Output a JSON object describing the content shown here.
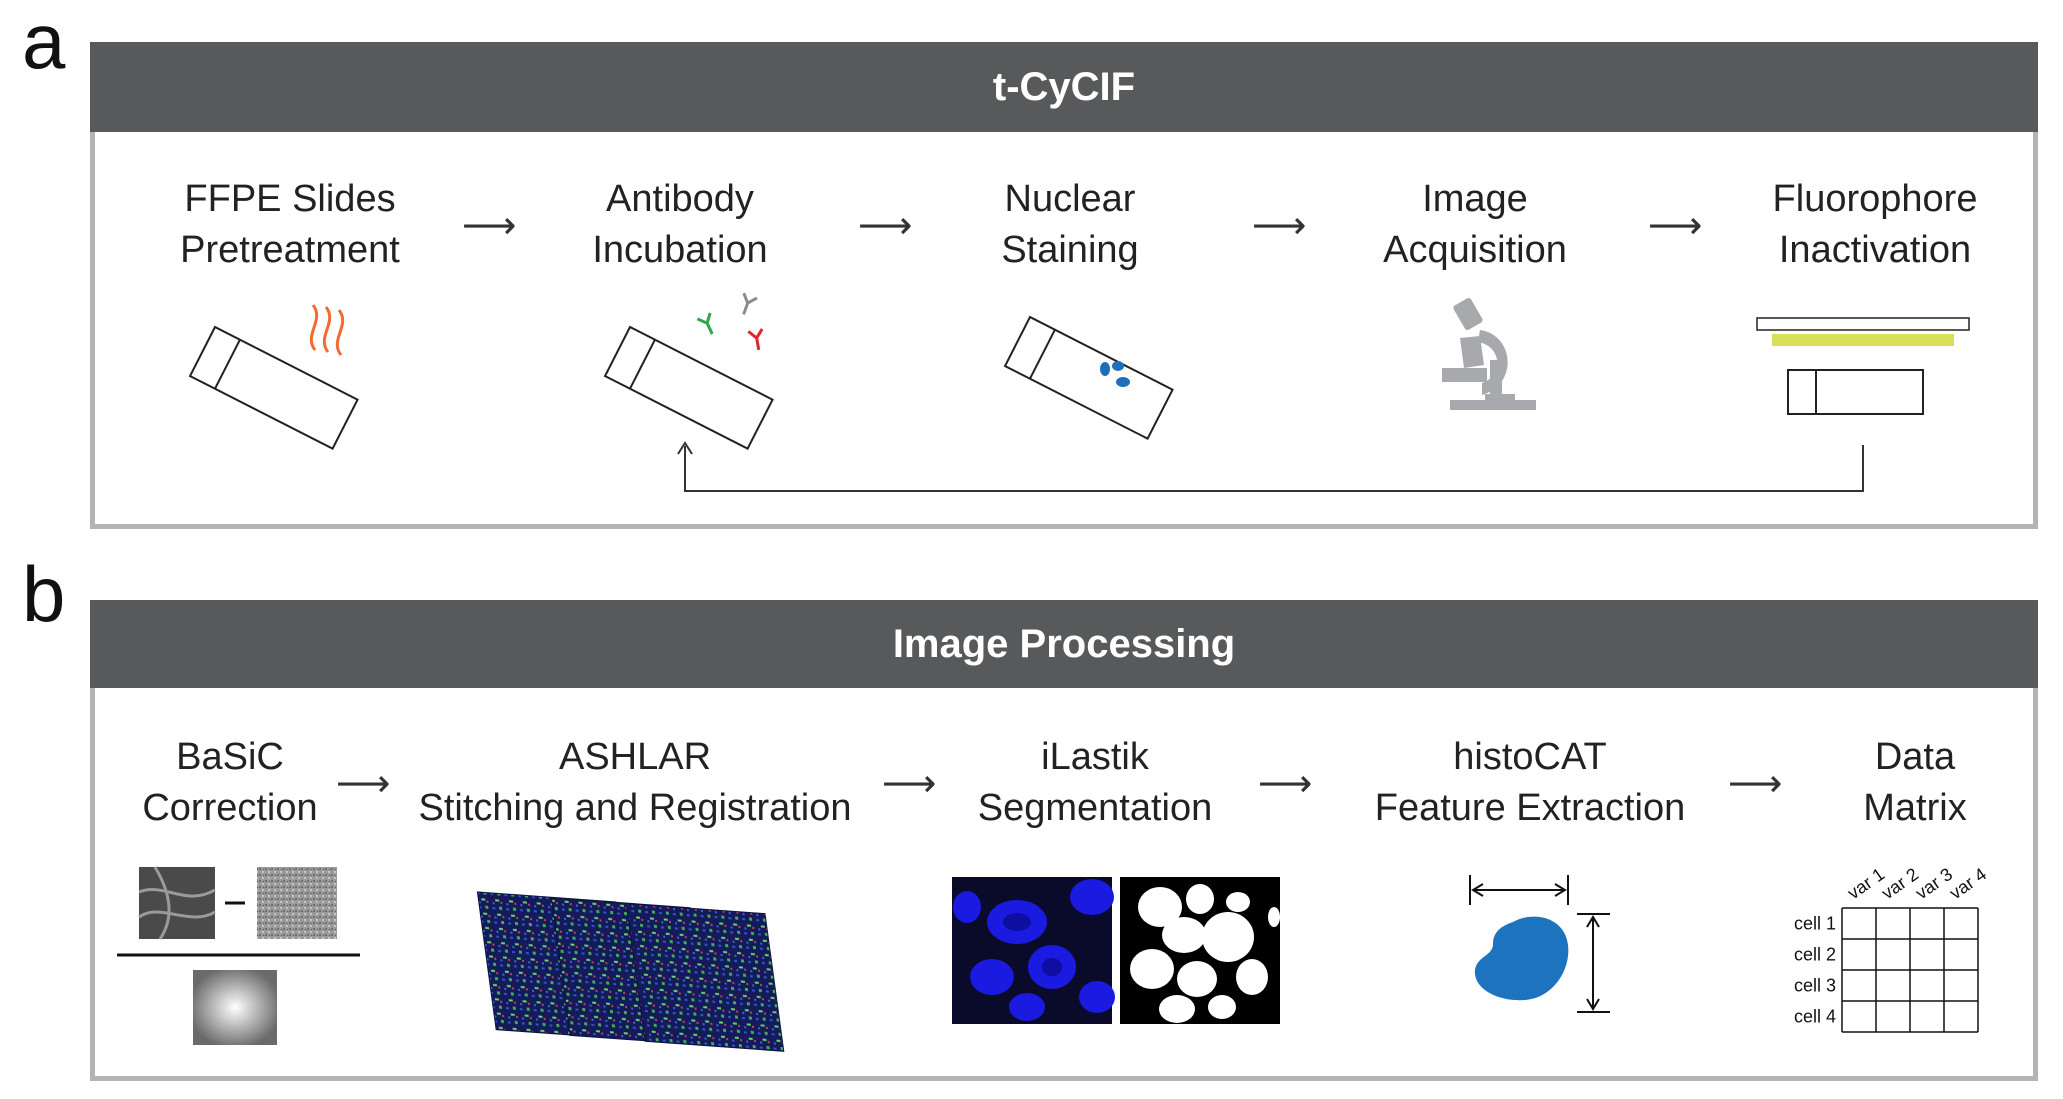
{
  "panel_a": {
    "letter": "a",
    "header": "t-CyCIF",
    "steps": [
      {
        "line1": "FFPE Slides",
        "line2": "Pretreatment"
      },
      {
        "line1": "Antibody",
        "line2": "Incubation"
      },
      {
        "line1": "Nuclear",
        "line2": "Staining"
      },
      {
        "line1": "Image",
        "line2": "Acquisition"
      },
      {
        "line1": "Fluorophore",
        "line2": "Inactivation"
      }
    ],
    "arrow": "⟶"
  },
  "panel_b": {
    "letter": "b",
    "header": "Image Processing",
    "steps": [
      {
        "line1": "BaSiC",
        "line2": "Correction"
      },
      {
        "line1": "ASHLAR",
        "line2": "Stitching and Registration"
      },
      {
        "line1": "iLastik",
        "line2": "Segmentation"
      },
      {
        "line1": "histoCAT",
        "line2": "Feature Extraction"
      },
      {
        "line1": "Data",
        "line2": "Matrix"
      }
    ],
    "arrow": "⟶",
    "matrix": {
      "columns": [
        "var 1",
        "var 2",
        "var 3",
        "var 4"
      ],
      "rows": [
        "cell 1",
        "cell 2",
        "cell 3",
        "cell 4"
      ]
    }
  },
  "colors": {
    "header_bg": "#58595b",
    "frame": "#b4b4b6",
    "heat_waves": "#f26a32",
    "antibody_green": "#2ea84a",
    "antibody_gray": "#8c8c8c",
    "antibody_red": "#e0262b",
    "nuclei_blue": "#1f6fb8",
    "microscope": "#a7a9ac",
    "filter_yellow": "#d8e05a",
    "cell_blue": "#1e73be"
  },
  "icons": [
    "heat-waves-icon",
    "slide-icon",
    "antibody-icon",
    "nuclei-icon",
    "microscope-icon",
    "light-filter-icon",
    "cycle-loop-arrow",
    "flatfield-correction-icon",
    "stitched-tiles-icon",
    "segmentation-icon",
    "cell-measure-icon",
    "data-matrix-grid"
  ]
}
